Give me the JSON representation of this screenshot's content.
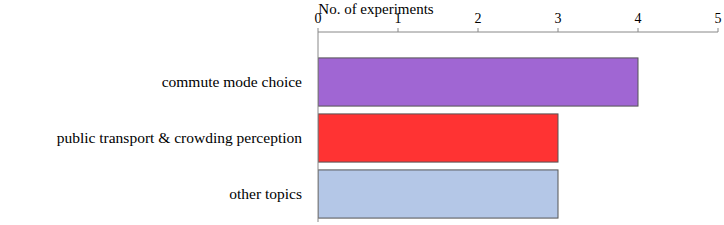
{
  "chart_data": {
    "type": "bar",
    "orientation": "horizontal",
    "x_label": "No. of experiments",
    "categories": [
      "commute mode choice",
      "public transport & crowding perception",
      "other topics"
    ],
    "values": [
      4,
      3,
      3
    ],
    "colors": [
      "#a066d3",
      "#ff3333",
      "#b4c7e7"
    ],
    "xlim": [
      0,
      5
    ],
    "xticks": [
      0,
      1,
      2,
      3,
      4,
      5
    ],
    "grid": false
  }
}
